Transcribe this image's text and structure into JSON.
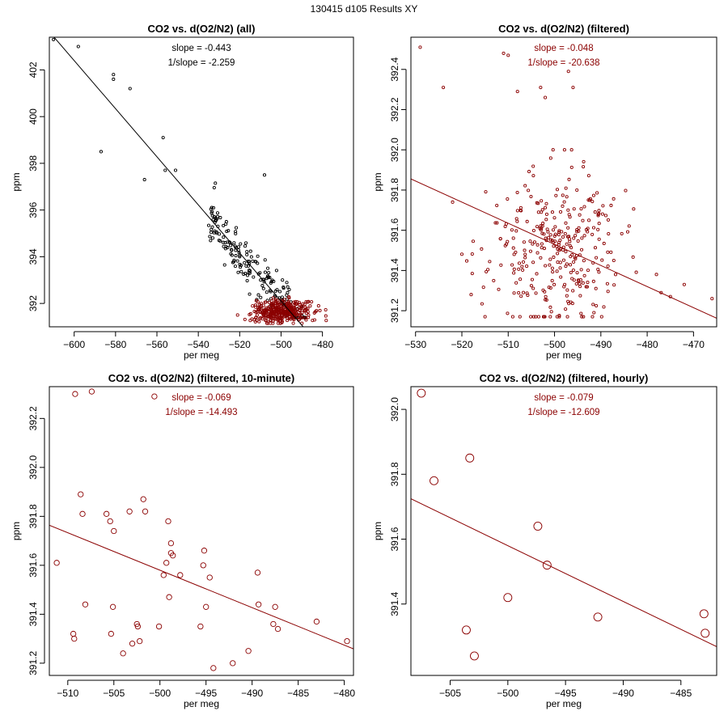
{
  "figure_title": "130415   d105   Results XY",
  "colors": {
    "black": "#000000",
    "red": "#8b0000"
  },
  "chart_data": [
    {
      "type": "scatter",
      "title": "CO2 vs. d(O2/N2) (all)",
      "xlabel": "per meg",
      "ylabel": "ppm",
      "xlim": [
        -612,
        -465
      ],
      "ylim": [
        391.0,
        403.4
      ],
      "xticks": [
        -600,
        -580,
        -560,
        -540,
        -520,
        -500,
        -480
      ],
      "yticks": [
        392,
        394,
        396,
        398,
        400,
        402
      ],
      "annotations": [
        "slope = -0.443",
        "1/slope = -2.259"
      ],
      "annotation_color": "#000000",
      "line": {
        "slope": -0.103,
        "intercept": 340.6,
        "color": "#000000"
      },
      "point_radius": 1.6,
      "series": [
        {
          "name": "all",
          "color": "#000000",
          "count": 180,
          "seed": 11,
          "cloud": {
            "xmin": -535,
            "xmax": -488,
            "ynoise": 0.5
          },
          "extra_points": [
            [
              -610,
              403.3
            ],
            [
              -598,
              403.0
            ],
            [
              -581,
              401.8
            ],
            [
              -581,
              401.6
            ],
            [
              -573,
              401.2
            ],
            [
              -587,
              398.5
            ],
            [
              -557,
              399.1
            ],
            [
              -556,
              397.7
            ],
            [
              -551,
              397.7
            ],
            [
              -566,
              397.3
            ],
            [
              -508,
              397.5
            ],
            [
              -533,
              394.8
            ],
            [
              -530,
              394.7
            ],
            [
              -527,
              394.6
            ],
            [
              -524,
              394.3
            ],
            [
              -520,
              394.0
            ],
            [
              -516,
              393.8
            ]
          ]
        },
        {
          "name": "filtered",
          "color": "#8b0000",
          "count": 360,
          "seed": 7,
          "cloud": {
            "xmin": -530,
            "xmax": -466,
            "ymin": 391.15,
            "ymax": 392.5,
            "cx": -500,
            "cy": 391.65,
            "sx": 7,
            "sy": 0.25
          }
        }
      ]
    },
    {
      "type": "scatter",
      "title": "CO2 vs. d(O2/N2) (filtered)",
      "xlabel": "per meg",
      "ylabel": "ppm",
      "xlim": [
        -531,
        -465
      ],
      "ylim": [
        391.12,
        392.56
      ],
      "xticks": [
        -530,
        -520,
        -510,
        -500,
        -490,
        -480,
        -470
      ],
      "yticks": [
        391.2,
        391.4,
        391.6,
        391.8,
        392.0,
        392.2,
        392.4
      ],
      "annotations": [
        "slope = -0.048",
        "1/slope = -20.638"
      ],
      "annotation_color": "#8b0000",
      "line": {
        "slope": -0.0105,
        "intercept": 386.28,
        "color": "#8b0000"
      },
      "point_radius": 1.6,
      "series": [
        {
          "name": "filtered",
          "color": "#8b0000",
          "count": 320,
          "seed": 23,
          "cloud": {
            "xmin": -520,
            "xmax": -466,
            "ymin": 391.17,
            "ymax": 392.0,
            "cx": -500,
            "cy": 391.5,
            "sx": 7,
            "sy": 0.2
          },
          "extra_points": [
            [
              -529,
              392.51
            ],
            [
              -524,
              392.31
            ],
            [
              -511,
              392.48
            ],
            [
              -510,
              392.47
            ],
            [
              -508,
              392.29
            ],
            [
              -503,
              392.31
            ],
            [
              -502,
              392.26
            ],
            [
              -497,
              392.39
            ],
            [
              -496,
              392.31
            ],
            [
              -522,
              391.74
            ],
            [
              -518,
              391.28
            ],
            [
              -515,
              391.17
            ],
            [
              -478,
              391.38
            ],
            [
              -477,
              391.29
            ],
            [
              -475,
              391.27
            ],
            [
              -472,
              391.33
            ],
            [
              -466,
              391.26
            ]
          ]
        }
      ]
    },
    {
      "type": "scatter",
      "title": "CO2 vs. d(O2/N2) (filtered, 10-minute)",
      "xlabel": "per meg",
      "ylabel": "ppm",
      "xlim": [
        -512,
        -479
      ],
      "ylim": [
        391.15,
        392.33
      ],
      "xticks": [
        -510,
        -505,
        -500,
        -495,
        -490,
        -485,
        -480
      ],
      "yticks": [
        391.2,
        391.4,
        391.6,
        391.8,
        392.0,
        392.2
      ],
      "annotations": [
        "slope = -0.069",
        "1/slope = -14.493"
      ],
      "annotation_color": "#8b0000",
      "line": {
        "slope": -0.0153,
        "intercept": 383.93,
        "color": "#8b0000"
      },
      "point_radius": 3.2,
      "series": [
        {
          "name": "10-minute",
          "color": "#8b0000",
          "points": [
            [
              -509.2,
              392.3
            ],
            [
              -507.4,
              392.31
            ],
            [
              -500.6,
              392.29
            ],
            [
              -511.2,
              391.61
            ],
            [
              -508.6,
              391.89
            ],
            [
              -508.4,
              391.81
            ],
            [
              -508.1,
              391.44
            ],
            [
              -509.4,
              391.32
            ],
            [
              -509.3,
              391.3
            ],
            [
              -505.8,
              391.81
            ],
            [
              -505.4,
              391.78
            ],
            [
              -505.0,
              391.74
            ],
            [
              -505.1,
              391.43
            ],
            [
              -505.3,
              391.32
            ],
            [
              -504.0,
              391.24
            ],
            [
              -503.3,
              391.82
            ],
            [
              -503.0,
              391.28
            ],
            [
              -502.5,
              391.36
            ],
            [
              -502.4,
              391.35
            ],
            [
              -502.2,
              391.29
            ],
            [
              -501.8,
              391.87
            ],
            [
              -501.6,
              391.82
            ],
            [
              -500.1,
              391.35
            ],
            [
              -499.6,
              391.56
            ],
            [
              -499.3,
              391.61
            ],
            [
              -499.1,
              391.78
            ],
            [
              -499.0,
              391.47
            ],
            [
              -498.8,
              391.65
            ],
            [
              -498.8,
              391.69
            ],
            [
              -498.6,
              391.64
            ],
            [
              -497.8,
              391.56
            ],
            [
              -495.6,
              391.35
            ],
            [
              -495.3,
              391.6
            ],
            [
              -495.2,
              391.66
            ],
            [
              -495.0,
              391.43
            ],
            [
              -494.6,
              391.55
            ],
            [
              -494.2,
              391.18
            ],
            [
              -492.1,
              391.2
            ],
            [
              -490.4,
              391.25
            ],
            [
              -489.4,
              391.57
            ],
            [
              -489.3,
              391.44
            ],
            [
              -487.7,
              391.36
            ],
            [
              -487.5,
              391.43
            ],
            [
              -487.2,
              391.34
            ],
            [
              -483.0,
              391.37
            ],
            [
              -479.7,
              391.29
            ]
          ]
        }
      ]
    },
    {
      "type": "scatter",
      "title": "CO2 vs. d(O2/N2) (filtered, hourly)",
      "xlabel": "per meg",
      "ylabel": "ppm",
      "xlim": [
        -508.4,
        -481.9
      ],
      "ylim": [
        391.18,
        392.07
      ],
      "xticks": [
        -505,
        -500,
        -495,
        -490,
        -485
      ],
      "yticks": [
        391.4,
        391.6,
        391.8,
        392.0
      ],
      "annotations": [
        "slope = -0.079",
        "1/slope = -12.609"
      ],
      "annotation_color": "#8b0000",
      "line": {
        "slope": -0.0172,
        "intercept": 382.98,
        "color": "#8b0000"
      },
      "point_radius": 5,
      "series": [
        {
          "name": "hourly",
          "color": "#8b0000",
          "points": [
            [
              -507.5,
              392.05
            ],
            [
              -506.4,
              391.78
            ],
            [
              -503.3,
              391.85
            ],
            [
              -503.6,
              391.32
            ],
            [
              -502.9,
              391.24
            ],
            [
              -500.0,
              391.42
            ],
            [
              -497.4,
              391.64
            ],
            [
              -496.6,
              391.52
            ],
            [
              -492.2,
              391.36
            ],
            [
              -483.0,
              391.37
            ],
            [
              -482.9,
              391.31
            ]
          ]
        }
      ]
    }
  ]
}
